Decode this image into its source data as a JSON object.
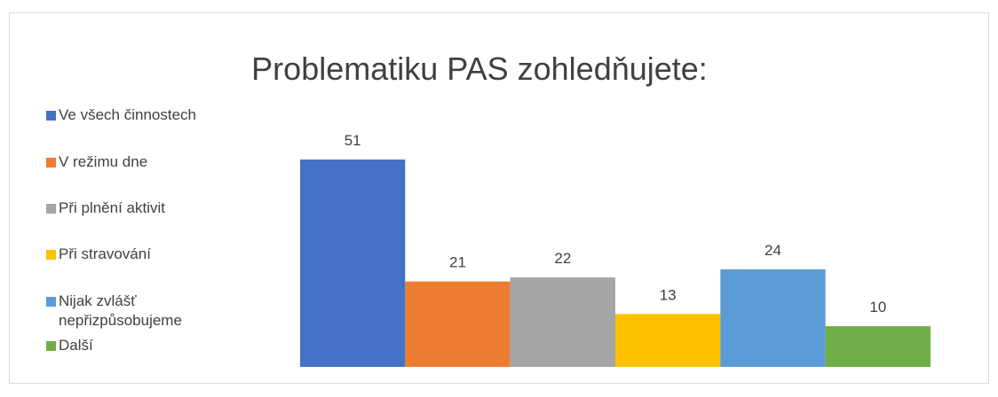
{
  "chart_data": {
    "type": "bar",
    "title": "Problematiku PAS zohledňujete:",
    "categories": [
      "Ve všech činnostech",
      "V režimu dne",
      "Při plnění aktivit",
      "Při stravování",
      "Nijak zvlášť nepřizpůsobujeme",
      "Další"
    ],
    "values": [
      51,
      21,
      22,
      13,
      24,
      10
    ],
    "colors": [
      "#4472c4",
      "#ed7d31",
      "#a5a5a5",
      "#ffc000",
      "#5b9bd5",
      "#70ad47"
    ],
    "legend": "left"
  }
}
